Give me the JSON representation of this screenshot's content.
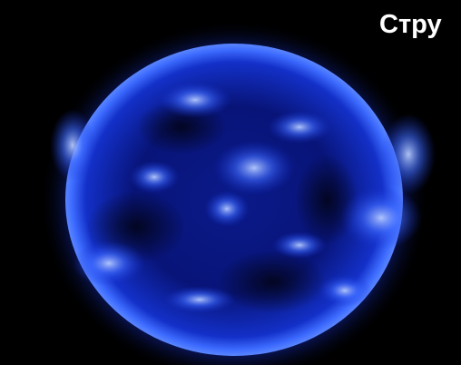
{
  "caption": {
    "text": "Стру"
  }
}
